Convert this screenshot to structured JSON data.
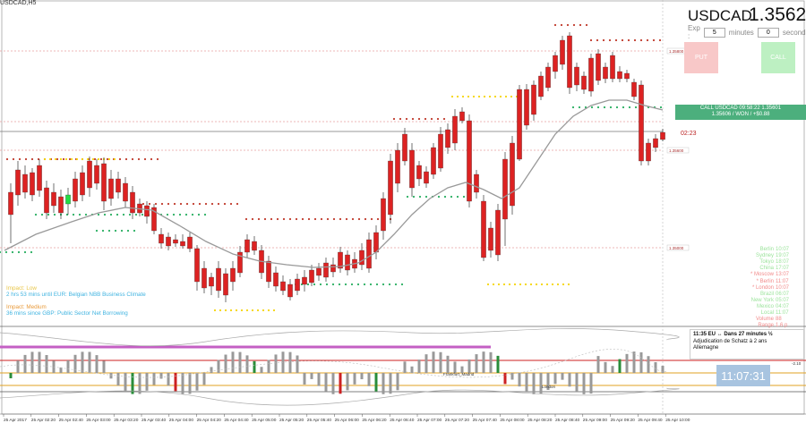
{
  "window": {
    "symbol_title": "USDCAD,H5"
  },
  "header": {
    "pair": "USDCAD",
    "price": "1.35620"
  },
  "expiry": {
    "label": "Exp :",
    "minutes_value": "5",
    "minutes_label": "minutes",
    "seconds_value": "0",
    "seconds_label": "seconds"
  },
  "buttons": {
    "put_label": "PUT",
    "call_label": "CALL"
  },
  "trade": {
    "line1": "CALL USDCAD 09:58:22 1.35601",
    "line2": "1.35606 / WON / +$0.88"
  },
  "countdown": "02:23",
  "price_labels": {
    "upper": "1.35800",
    "mid": "1.35600",
    "lower": "1.35000"
  },
  "sessions": [
    {
      "name": "Berlin",
      "time": "10:07",
      "color": "#9be39b"
    },
    {
      "name": "Sydney",
      "time": "19:07",
      "color": "#9be39b"
    },
    {
      "name": "Tokyo",
      "time": "18:07",
      "color": "#9be39b"
    },
    {
      "name": "China",
      "time": "17:07",
      "color": "#9be39b"
    },
    {
      "name": "* Moscow",
      "time": "13:07",
      "color": "#f28b8b"
    },
    {
      "name": "* Berlin",
      "time": "11:07",
      "color": "#f28b8b"
    },
    {
      "name": "* London",
      "time": "10:07",
      "color": "#f28b8b"
    },
    {
      "name": "Brazil",
      "time": "06:07",
      "color": "#9be39b"
    },
    {
      "name": "New York",
      "time": "05:07",
      "color": "#9be39b"
    },
    {
      "name": "Mexico",
      "time": "04:07",
      "color": "#9be39b"
    },
    {
      "name": "Local",
      "time": "11:07",
      "color": "#9be39b"
    },
    {
      "name": "Volume",
      "time": "88",
      "color": "#f28b8b"
    },
    {
      "name": "Range",
      "time": "1.6 p",
      "color": "#f28b8b"
    }
  ],
  "news": [
    {
      "text": "Impact: Low",
      "color": "#e8c64a"
    },
    {
      "text": "2 hrs 53 mins until EUR: Belgian NBB Business Climate",
      "color": "#3fb3e0"
    },
    {
      "text": "Impact: Medium",
      "color": "#e89a3a"
    },
    {
      "text": "36 mins since GBP: Public Sector Net Borrowing",
      "color": "#3fb3e0"
    }
  ],
  "event": {
    "line1": "11:35 EU  ↔  Dans 27 minutes ½",
    "line2": "Adjudication de Schatz à 2 ans",
    "line3": "Allemagne"
  },
  "clock": "11:07:31",
  "indicator_labels": {
    "frankfurt": "Frankfurt_Madrid",
    "london": "London",
    "side": "-2.10"
  },
  "time_axis": [
    "25 Apr 2017",
    "25 Apr 02:20",
    "25 Apr 02:40",
    "25 Apr 03:00",
    "25 Apr 03:20",
    "25 Apr 03:40",
    "25 Apr 04:00",
    "25 Apr 04:20",
    "25 Apr 04:40",
    "25 Apr 05:00",
    "25 Apr 05:20",
    "25 Apr 05:40",
    "25 Apr 06:00",
    "25 Apr 06:20",
    "25 Apr 06:40",
    "25 Apr 07:00",
    "25 Apr 07:20",
    "25 Apr 07:40",
    "25 Apr 08:00",
    "25 Apr 08:20",
    "25 Apr 08:40",
    "25 Apr 09:00",
    "25 Apr 09:20",
    "25 Apr 09:40",
    "25 Apr 10:00"
  ],
  "colors": {
    "bull": "#22dd44",
    "bear": "#dd2222",
    "ma": "#999999",
    "dots_red": "#c0392b",
    "dots_green": "#27ae60",
    "dots_yellow": "#f5d50a",
    "clock_bg": "#a8c4e0"
  }
}
